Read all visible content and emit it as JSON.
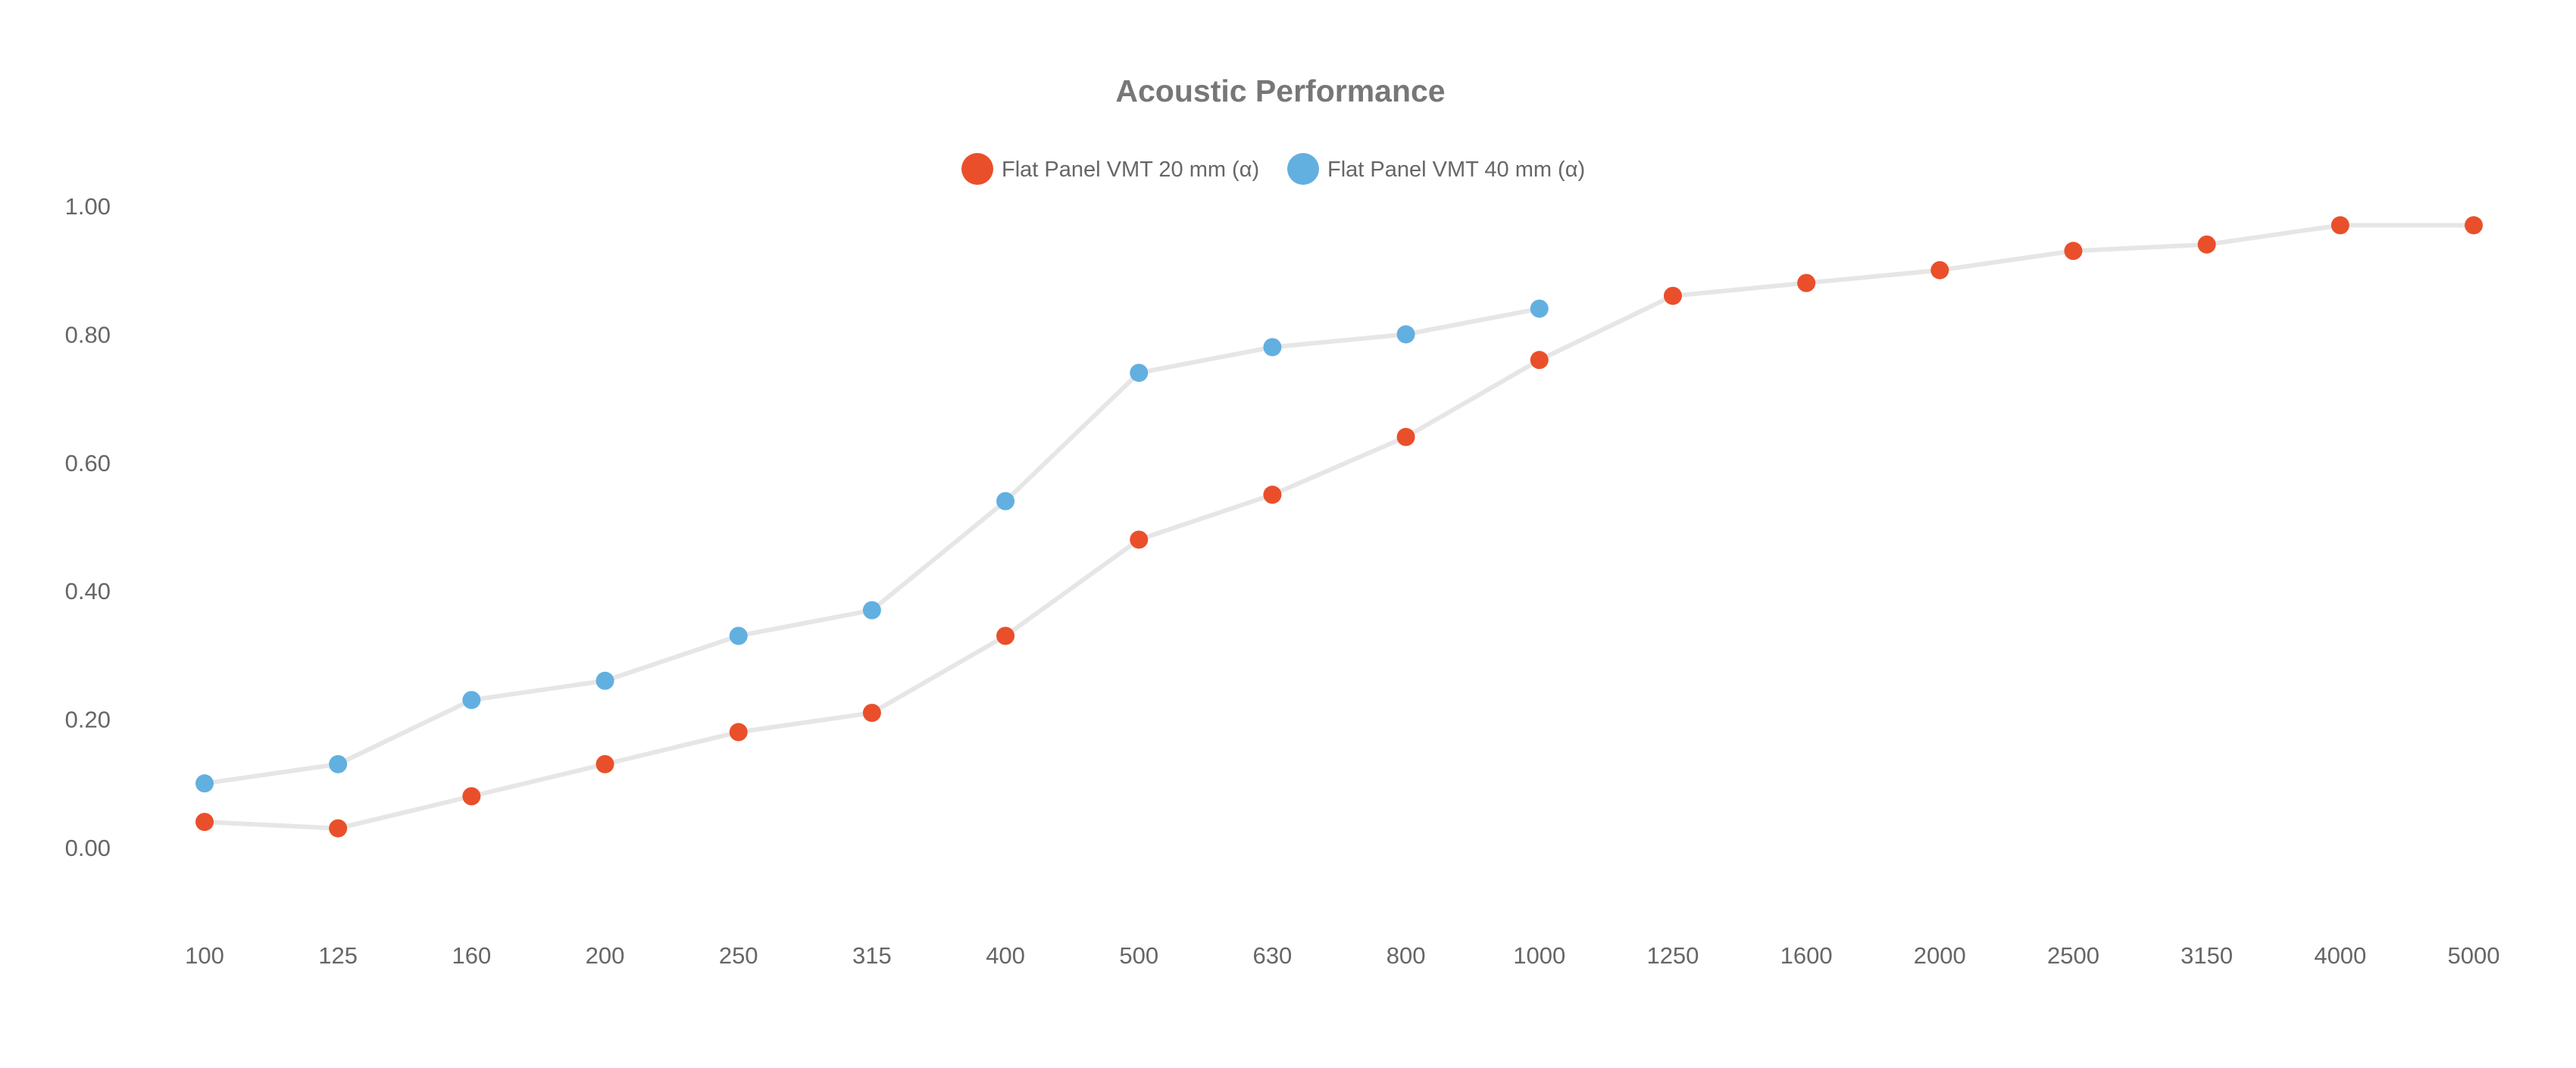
{
  "chart_data": {
    "type": "line",
    "title": "Acoustic Performance",
    "xlabel": "",
    "ylabel": "",
    "categories": [
      "100",
      "125",
      "160",
      "200",
      "250",
      "315",
      "400",
      "500",
      "630",
      "800",
      "1000",
      "1250",
      "1600",
      "2000",
      "2500",
      "3150",
      "4000",
      "5000"
    ],
    "y_ticks": [
      "0.00",
      "0.20",
      "0.40",
      "0.60",
      "0.80",
      "1.00"
    ],
    "ylim": [
      0,
      1
    ],
    "grid": false,
    "legend_position": "top-center",
    "line_color": "#e6e6e6",
    "series": [
      {
        "name": "Flat Panel VMT 20 mm (α)",
        "color": "#ea4f2b",
        "values": [
          0.04,
          0.03,
          0.08,
          0.13,
          0.18,
          0.21,
          0.33,
          0.48,
          0.55,
          0.64,
          0.76,
          0.86,
          0.88,
          0.9,
          0.93,
          0.94,
          0.97,
          0.97
        ]
      },
      {
        "name": "Flat Panel VMT 40 mm (α)",
        "color": "#62b0e0",
        "values": [
          0.1,
          0.13,
          0.23,
          0.26,
          0.33,
          0.37,
          0.54,
          0.74,
          0.78,
          0.8,
          0.84,
          null,
          null,
          null,
          null,
          null,
          null,
          null
        ]
      }
    ]
  }
}
